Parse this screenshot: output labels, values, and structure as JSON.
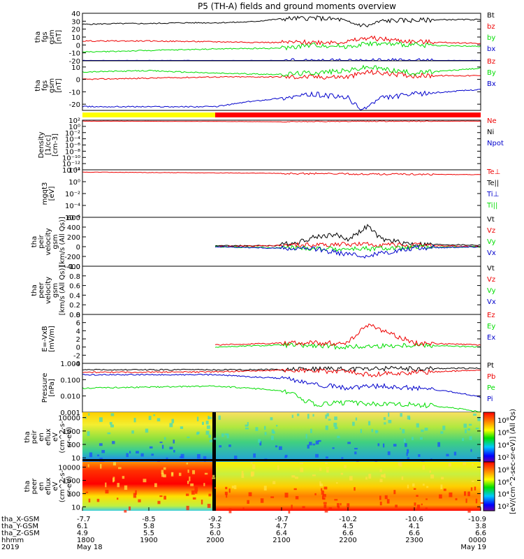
{
  "title": "P5 (TH-A) fields and ground moments overview",
  "colors": {
    "black": "#000000",
    "red": "#ee0000",
    "green": "#00dd00",
    "blue": "#0000cc",
    "yellow": "#ffff00",
    "bar_red": "#ff0000"
  },
  "chart_data": [
    {
      "id": "fgs-gsm",
      "type": "line",
      "ylabel": [
        "tha",
        "fgs",
        "gsm",
        "[nT]"
      ],
      "ylim": [
        -20,
        40
      ],
      "yticks": [
        40,
        30,
        20,
        10,
        0,
        -10,
        -20
      ],
      "grid": false,
      "legend": [
        {
          "label": "Bt",
          "color": "#000000"
        },
        {
          "label": "bz",
          "color": "#ee0000"
        },
        {
          "label": "by",
          "color": "#00dd00"
        },
        {
          "label": "bx",
          "color": "#0000cc"
        }
      ],
      "series": [
        {
          "name": "Bt",
          "color": "#000000",
          "x": [
            18.0,
            18.5,
            19.0,
            19.5,
            20.0,
            20.5,
            21.0,
            21.5,
            21.9,
            22.0,
            22.3,
            22.5,
            22.7,
            23.0,
            23.5,
            24.0
          ],
          "y": [
            26,
            27,
            27,
            28,
            28,
            29,
            33,
            34,
            32,
            28,
            24,
            30,
            31,
            31,
            32,
            32
          ]
        },
        {
          "name": "bz",
          "color": "#ee0000",
          "x": [
            18.0,
            19.0,
            20.0,
            21.0,
            22.0,
            22.3,
            23.0,
            24.0
          ],
          "y": [
            5,
            5,
            4,
            3,
            4,
            9,
            4,
            2
          ]
        },
        {
          "name": "by",
          "color": "#00dd00",
          "x": [
            18.0,
            19.0,
            20.0,
            21.0,
            21.5,
            22.0,
            22.3,
            23.0,
            24.0
          ],
          "y": [
            -9,
            -7,
            -5,
            -4,
            0,
            -2,
            2,
            0,
            -2
          ]
        },
        {
          "name": "bx",
          "color": "#0000cc",
          "x": [
            18.0,
            24.0
          ],
          "y": [
            -20,
            -20
          ]
        }
      ]
    },
    {
      "id": "fgs-gse",
      "type": "line",
      "ylabel": [
        "tha",
        "fgs",
        "gsm",
        "[nT]"
      ],
      "ylim": [
        -25,
        15
      ],
      "yticks": [
        10,
        0,
        -10,
        -20
      ],
      "legend": [
        {
          "label": "Bz",
          "color": "#ee0000"
        },
        {
          "label": "By",
          "color": "#00dd00"
        },
        {
          "label": "Bx",
          "color": "#0000cc"
        }
      ],
      "series": [
        {
          "name": "Bz",
          "color": "#ee0000",
          "x": [
            18.0,
            19.0,
            20.0,
            21.0,
            22.0,
            22.3,
            23.0,
            24.0
          ],
          "y": [
            0,
            1,
            2,
            2,
            2,
            6,
            3,
            3
          ]
        },
        {
          "name": "By",
          "color": "#00dd00",
          "x": [
            18.0,
            19.0,
            20.0,
            21.0,
            22.0,
            22.3,
            23.0,
            24.0
          ],
          "y": [
            6,
            7,
            5,
            4,
            7,
            10,
            5,
            9
          ]
        },
        {
          "name": "Bx",
          "color": "#0000cc",
          "x": [
            18.0,
            19.0,
            20.0,
            20.5,
            21.0,
            21.5,
            22.0,
            22.2,
            22.5,
            23.0,
            24.0
          ],
          "y": [
            -22,
            -22,
            -22,
            -18,
            -15,
            -12,
            -15,
            -25,
            -15,
            -12,
            -8
          ]
        }
      ]
    },
    {
      "id": "density",
      "type": "line",
      "ylabel": [
        "Density",
        "[1/cc]",
        "[cm-3]"
      ],
      "yscale": "log",
      "ylim": [
        1e-14,
        100
      ],
      "yticks": [
        "10²",
        "10⁰",
        "10⁻²",
        "10⁻⁴",
        "10⁻⁶",
        "10⁻⁸",
        "10⁻¹⁰",
        "10⁻¹²",
        "10⁻¹⁴"
      ],
      "legend": [
        {
          "label": "Ne",
          "color": "#ee0000"
        },
        {
          "label": "Ni",
          "color": "#000000"
        },
        {
          "label": "Npot",
          "color": "#0000cc"
        }
      ],
      "series": [
        {
          "name": "Ne",
          "color": "#ee0000",
          "x": [
            18.0,
            20.0,
            21.0,
            22.0,
            24.0
          ],
          "y": [
            50,
            40,
            30,
            40,
            50
          ]
        }
      ]
    },
    {
      "id": "temperature",
      "type": "line",
      "ylabel": [
        "mgqt3",
        "[eV]"
      ],
      "yscale": "log",
      "ylim": [
        1e-06,
        100
      ],
      "yticks": [
        "10²",
        "10⁰",
        "10⁻²",
        "10⁻⁴",
        "10⁻⁶"
      ],
      "legend": [
        {
          "label": "Te⊥",
          "color": "#ee0000"
        },
        {
          "label": "Te||",
          "color": "#000000"
        },
        {
          "label": "Ti⊥",
          "color": "#0000cc"
        },
        {
          "label": "Ti||",
          "color": "#00dd00"
        }
      ],
      "series": [
        {
          "name": "Te⊥",
          "color": "#ee0000",
          "x": [
            18.0,
            21.0,
            22.0,
            24.0
          ],
          "y": [
            40,
            25,
            20,
            15
          ]
        }
      ]
    },
    {
      "id": "peir-velocity",
      "type": "line",
      "ylabel": [
        "tha",
        "peir",
        "velocity",
        "gsm",
        "[km/s (All Qs)]"
      ],
      "ylim": [
        -400,
        600
      ],
      "yticks": [
        600,
        400,
        200,
        0,
        -200,
        -400
      ],
      "legend": [
        {
          "label": "Vt",
          "color": "#000000"
        },
        {
          "label": "Vz",
          "color": "#ee0000"
        },
        {
          "label": "Vy",
          "color": "#00dd00"
        },
        {
          "label": "Vx",
          "color": "#0000cc"
        }
      ],
      "series": [
        {
          "name": "Vt",
          "color": "#000000",
          "x": [
            20.0,
            20.9,
            21.2,
            21.5,
            21.8,
            22.0,
            22.3,
            22.5,
            23.0,
            24.0
          ],
          "y": [
            20,
            20,
            80,
            200,
            250,
            150,
            420,
            150,
            50,
            30
          ]
        },
        {
          "name": "Vz",
          "color": "#ee0000",
          "x": [
            20.0,
            22.0,
            24.0
          ],
          "y": [
            0,
            50,
            0
          ]
        },
        {
          "name": "Vy",
          "color": "#00dd00",
          "x": [
            20.0,
            22.0,
            24.0
          ],
          "y": [
            0,
            -50,
            0
          ]
        },
        {
          "name": "Vx",
          "color": "#0000cc",
          "x": [
            20.0,
            21.5,
            22.2,
            23.0,
            24.0
          ],
          "y": [
            0,
            -50,
            -200,
            -30,
            0
          ]
        }
      ]
    },
    {
      "id": "peer-velocity",
      "type": "line",
      "ylabel": [
        "tha",
        "peer",
        "velocity",
        "gsm",
        "[km/s (All Qs)]"
      ],
      "ylim": [
        0,
        1.0
      ],
      "yticks": [
        "1.0",
        "0.8",
        "0.6",
        "0.4",
        "0.2",
        "0.0"
      ],
      "legend": [
        {
          "label": "Vt",
          "color": "#000000"
        },
        {
          "label": "Vz",
          "color": "#ee0000"
        },
        {
          "label": "Vy",
          "color": "#00dd00"
        },
        {
          "label": "Vx",
          "color": "#0000cc"
        }
      ],
      "series": []
    },
    {
      "id": "e-field",
      "type": "line",
      "ylabel": [
        "E=-VxB",
        "[mV/m]"
      ],
      "ylim": [
        -4,
        8
      ],
      "yticks": [
        8,
        6,
        4,
        2,
        0,
        -2,
        -4
      ],
      "legend": [
        {
          "label": "Ez",
          "color": "#ee0000"
        },
        {
          "label": "Ey",
          "color": "#00dd00"
        },
        {
          "label": "Ex",
          "color": "#0000cc"
        }
      ],
      "series": [
        {
          "name": "Ey",
          "color": "#00dd00",
          "x": [
            20.0,
            21.0,
            22.0,
            23.0,
            24.0
          ],
          "y": [
            0,
            0.5,
            0,
            0.5,
            0
          ]
        },
        {
          "name": "Ez",
          "color": "#ee0000",
          "x": [
            20.0,
            21.0,
            22.0,
            22.3,
            23.0,
            24.0
          ],
          "y": [
            0.5,
            1,
            1,
            5.5,
            1,
            0.5
          ]
        }
      ]
    },
    {
      "id": "pressure",
      "type": "line",
      "ylabel": [
        "Pressure",
        "[nPa]"
      ],
      "yscale": "log",
      "ylim": [
        0.001,
        1.0
      ],
      "yticks": [
        "1.000",
        "0.100",
        "0.010",
        "0.001"
      ],
      "legend": [
        {
          "label": "Pt",
          "color": "#000000"
        },
        {
          "label": "Pb",
          "color": "#ee0000"
        },
        {
          "label": "Pe",
          "color": "#00dd00"
        },
        {
          "label": "Pi",
          "color": "#0000cc"
        }
      ],
      "series": [
        {
          "name": "Pt",
          "color": "#000000",
          "x": [
            18.0,
            20.0,
            21.0,
            22.0,
            24.0
          ],
          "y": [
            0.4,
            0.4,
            0.42,
            0.45,
            0.5
          ]
        },
        {
          "name": "Pb",
          "color": "#ee0000",
          "x": [
            18.0,
            20.0,
            21.0,
            22.0,
            22.3,
            24.0
          ],
          "y": [
            0.28,
            0.3,
            0.38,
            0.3,
            0.2,
            0.38
          ]
        },
        {
          "name": "Pi",
          "color": "#0000cc",
          "x": [
            18.0,
            20.0,
            20.5,
            21.0,
            21.5,
            22.0,
            22.5,
            23.0,
            24.0
          ],
          "y": [
            0.2,
            0.2,
            0.15,
            0.12,
            0.05,
            0.03,
            0.04,
            0.03,
            0.008
          ]
        },
        {
          "name": "Pe",
          "color": "#00dd00",
          "x": [
            18.0,
            20.0,
            20.5,
            21.0,
            21.3,
            21.5,
            22.0,
            22.5,
            23.0,
            24.0
          ],
          "y": [
            0.03,
            0.04,
            0.03,
            0.02,
            0.006,
            0.003,
            0.004,
            0.003,
            0.003,
            0.001
          ]
        }
      ]
    },
    {
      "id": "peir-spectrogram",
      "type": "heatmap",
      "ylabel": [
        "tha",
        "peir",
        "en",
        "eflux",
        "eV",
        "(cm^2-s-",
        "sr-eV)"
      ],
      "yscale": "log",
      "ylim": [
        5,
        25000
      ],
      "yticks": [
        "10000",
        "1000",
        "100",
        "10"
      ],
      "colorbar": {
        "ticks": [
          "10⁸",
          "10⁶",
          "10⁴",
          "10²"
        ]
      }
    },
    {
      "id": "peer-spectrogram",
      "type": "heatmap",
      "ylabel": [
        "tha",
        "peer",
        "en",
        "eflux",
        "eV",
        "(cm^2-s-",
        "sr-eV)"
      ],
      "yscale": "log",
      "ylim": [
        5,
        25000
      ],
      "yticks": [
        "10000",
        "1000",
        "100",
        "10"
      ],
      "colorbar": {
        "ticks": [
          "10⁸",
          "10⁶",
          "10⁴",
          "10²"
        ],
        "label": "[eV/(cm^2-sec-sr-eV)] (All Qs)"
      }
    }
  ],
  "x_axis": {
    "range": [
      18.0,
      24.0
    ],
    "row_labels": [
      "tha_X-GSM",
      "tha_Y-GSM",
      "tha_Z-GSM",
      "hhmm",
      "2019"
    ],
    "ticks": [
      {
        "x": 18.0,
        "values": [
          "-7.7",
          "6.1",
          "4.9",
          "1800"
        ],
        "date": "May 18"
      },
      {
        "x": 19.0,
        "values": [
          "-8.5",
          "5.8",
          "5.5",
          "1900"
        ]
      },
      {
        "x": 20.0,
        "values": [
          "-9.2",
          "5.3",
          "6.0",
          "2000"
        ]
      },
      {
        "x": 21.0,
        "values": [
          "-9.7",
          "4.7",
          "6.4",
          "2100"
        ]
      },
      {
        "x": 22.0,
        "values": [
          "-10.2",
          "4.5",
          "6.6",
          "2200"
        ]
      },
      {
        "x": 23.0,
        "values": [
          "-10.6",
          "4.1",
          "6.6",
          "2300"
        ]
      },
      {
        "x": 24.0,
        "values": [
          "-10.9",
          "3.8",
          "6.6",
          "0000"
        ],
        "date": "May 19"
      }
    ]
  },
  "mode_bar": [
    {
      "from": 18.0,
      "to": 20.0,
      "color": "#ffff00"
    },
    {
      "from": 20.0,
      "to": 24.0,
      "color": "#ff0000"
    }
  ]
}
